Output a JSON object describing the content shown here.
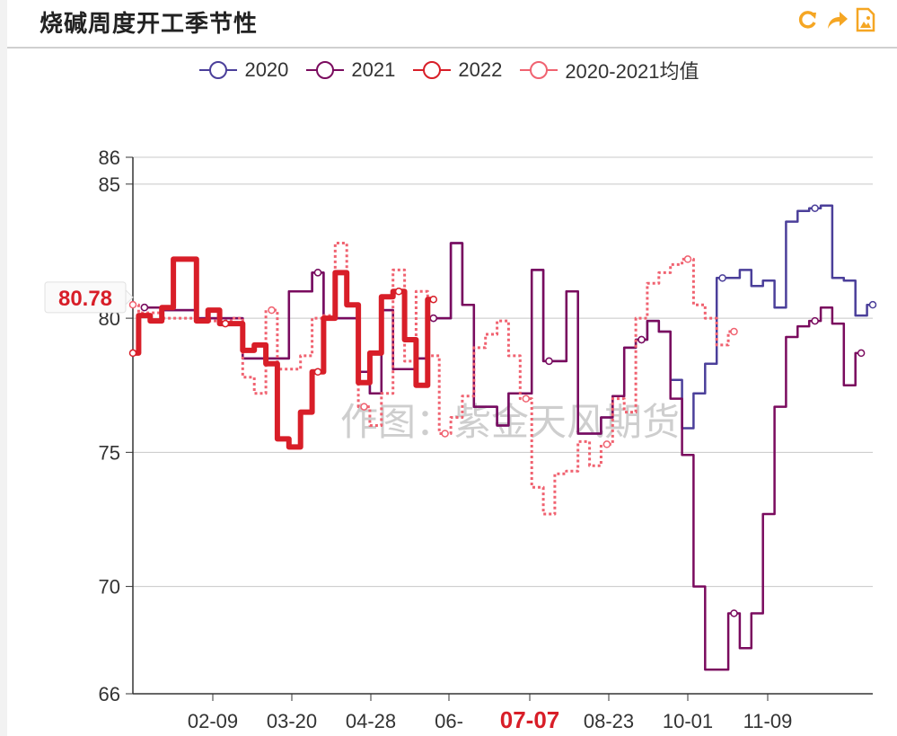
{
  "header": {
    "title": "烧碱周度开工季节性"
  },
  "toolbar": {
    "icons": [
      "refresh-icon",
      "share-icon",
      "save-image-icon"
    ],
    "accent": "#f5a623"
  },
  "watermark": "作图：紫金天风期货",
  "tooltip_value": "80.78",
  "chart_data": {
    "type": "line",
    "title": "烧碱周度开工季节性",
    "xlabel": "",
    "ylabel": "",
    "ylim": [
      66,
      86
    ],
    "yticks": [
      66,
      70,
      75,
      80,
      85,
      86
    ],
    "xticks": [
      "02-09",
      "03-20",
      "04-28",
      "06-",
      "07-07",
      "08-23",
      "10-01",
      "11-09"
    ],
    "highlight_xtick": "07-07",
    "grid": true,
    "legend_position": "top-center",
    "series": [
      {
        "name": "2020",
        "color": "#4b3f9a",
        "style": "solid",
        "points": [
          [
            1,
            80.4
          ],
          [
            3,
            80.3
          ],
          [
            6,
            80.0
          ],
          [
            9,
            80.0
          ],
          [
            10,
            78.5
          ],
          [
            13,
            78.5
          ],
          [
            14,
            81.0
          ],
          [
            16,
            81.7
          ],
          [
            17,
            80.0
          ],
          [
            20,
            78.0
          ],
          [
            21,
            77.2
          ],
          [
            22,
            80.3
          ],
          [
            23,
            78.1
          ],
          [
            25,
            78.5
          ],
          [
            26,
            80.0
          ],
          [
            28,
            82.8
          ],
          [
            29,
            80.5
          ],
          [
            30,
            76.7
          ],
          [
            32,
            76.0
          ],
          [
            33,
            77.2
          ],
          [
            35,
            81.8
          ],
          [
            36,
            78.4
          ],
          [
            38,
            81.0
          ],
          [
            39,
            75.7
          ],
          [
            40,
            75.7
          ],
          [
            41,
            76.3
          ],
          [
            42,
            77.1
          ],
          [
            43,
            78.9
          ],
          [
            44,
            79.2
          ],
          [
            45,
            79.9
          ],
          [
            46,
            79.5
          ],
          [
            47,
            77.7
          ],
          [
            48,
            75.9
          ],
          [
            49,
            77.2
          ],
          [
            50,
            78.3
          ],
          [
            51,
            81.5
          ],
          [
            53,
            81.8
          ],
          [
            54,
            81.2
          ],
          [
            55,
            81.4
          ],
          [
            56,
            80.4
          ],
          [
            57,
            83.6
          ],
          [
            58,
            84.0
          ],
          [
            59,
            84.1
          ],
          [
            60,
            84.2
          ],
          [
            61,
            81.5
          ],
          [
            62,
            81.4
          ],
          [
            63,
            80.1
          ],
          [
            64,
            80.5
          ]
        ]
      },
      {
        "name": "2021",
        "color": "#7a0b5e",
        "style": "solid",
        "points": [
          [
            1,
            80.4
          ],
          [
            3,
            80.3
          ],
          [
            6,
            80.0
          ],
          [
            9,
            80.0
          ],
          [
            10,
            78.5
          ],
          [
            13,
            78.5
          ],
          [
            14,
            81.0
          ],
          [
            16,
            81.7
          ],
          [
            17,
            80.0
          ],
          [
            20,
            78.0
          ],
          [
            21,
            77.2
          ],
          [
            22,
            80.3
          ],
          [
            23,
            78.1
          ],
          [
            25,
            78.5
          ],
          [
            26,
            80.0
          ],
          [
            28,
            82.8
          ],
          [
            29,
            80.5
          ],
          [
            30,
            76.7
          ],
          [
            32,
            76.0
          ],
          [
            33,
            77.2
          ],
          [
            35,
            81.8
          ],
          [
            36,
            78.4
          ],
          [
            38,
            81.0
          ],
          [
            39,
            75.7
          ],
          [
            40,
            75.7
          ],
          [
            41,
            76.3
          ],
          [
            42,
            77.1
          ],
          [
            43,
            78.9
          ],
          [
            44,
            79.2
          ],
          [
            45,
            79.9
          ],
          [
            46,
            79.5
          ],
          [
            47,
            77.0
          ],
          [
            48,
            74.9
          ],
          [
            49,
            70.0
          ],
          [
            50,
            66.9
          ],
          [
            52,
            69.0
          ],
          [
            53,
            67.7
          ],
          [
            54,
            69.0
          ],
          [
            55,
            72.7
          ],
          [
            56,
            76.7
          ],
          [
            57,
            79.3
          ],
          [
            58,
            79.7
          ],
          [
            59,
            79.9
          ],
          [
            60,
            80.4
          ],
          [
            61,
            79.8
          ],
          [
            62,
            77.5
          ],
          [
            63,
            78.7
          ]
        ]
      },
      {
        "name": "2022",
        "color": "#d81e28",
        "style": "thick",
        "points": [
          [
            0,
            78.7
          ],
          [
            1,
            80.1
          ],
          [
            2,
            79.9
          ],
          [
            3,
            80.4
          ],
          [
            4,
            82.2
          ],
          [
            6,
            79.9
          ],
          [
            7,
            80.3
          ],
          [
            8,
            79.8
          ],
          [
            10,
            78.8
          ],
          [
            11,
            79.0
          ],
          [
            12,
            78.3
          ],
          [
            13,
            75.5
          ],
          [
            14,
            75.2
          ],
          [
            15,
            76.5
          ],
          [
            16,
            78.0
          ],
          [
            17,
            80.0
          ],
          [
            18,
            81.7
          ],
          [
            19,
            80.5
          ],
          [
            20,
            77.6
          ],
          [
            21,
            78.7
          ],
          [
            22,
            80.8
          ],
          [
            23,
            81.0
          ],
          [
            24,
            79.2
          ],
          [
            25,
            77.5
          ],
          [
            26,
            80.7
          ]
        ]
      },
      {
        "name": "2020-2021均值",
        "color": "#f06270",
        "style": "dotted",
        "points": [
          [
            0,
            80.5
          ],
          [
            1,
            80.2
          ],
          [
            3,
            80.0
          ],
          [
            6,
            79.9
          ],
          [
            9,
            80.0
          ],
          [
            10,
            77.8
          ],
          [
            11,
            77.2
          ],
          [
            12,
            80.3
          ],
          [
            13,
            78.1
          ],
          [
            15,
            78.6
          ],
          [
            16,
            80.0
          ],
          [
            17,
            80.1
          ],
          [
            18,
            82.8
          ],
          [
            19,
            80.5
          ],
          [
            20,
            76.7
          ],
          [
            21,
            76.0
          ],
          [
            22,
            77.2
          ],
          [
            23,
            81.8
          ],
          [
            24,
            78.4
          ],
          [
            25,
            81.0
          ],
          [
            26,
            78.6
          ],
          [
            27,
            75.7
          ],
          [
            28,
            76.3
          ],
          [
            29,
            77.1
          ],
          [
            30,
            78.9
          ],
          [
            31,
            79.4
          ],
          [
            32,
            79.9
          ],
          [
            33,
            78.6
          ],
          [
            34,
            77.0
          ],
          [
            35,
            73.7
          ],
          [
            36,
            72.7
          ],
          [
            37,
            74.2
          ],
          [
            38,
            74.3
          ],
          [
            39,
            75.4
          ],
          [
            40,
            74.5
          ],
          [
            41,
            75.3
          ],
          [
            42,
            77.0
          ],
          [
            43,
            76.5
          ],
          [
            44,
            80.0
          ],
          [
            45,
            81.3
          ],
          [
            46,
            81.7
          ],
          [
            47,
            82.0
          ],
          [
            48,
            82.2
          ],
          [
            49,
            80.5
          ],
          [
            50,
            80.0
          ],
          [
            51,
            79.0
          ],
          [
            52,
            79.5
          ]
        ]
      }
    ]
  }
}
